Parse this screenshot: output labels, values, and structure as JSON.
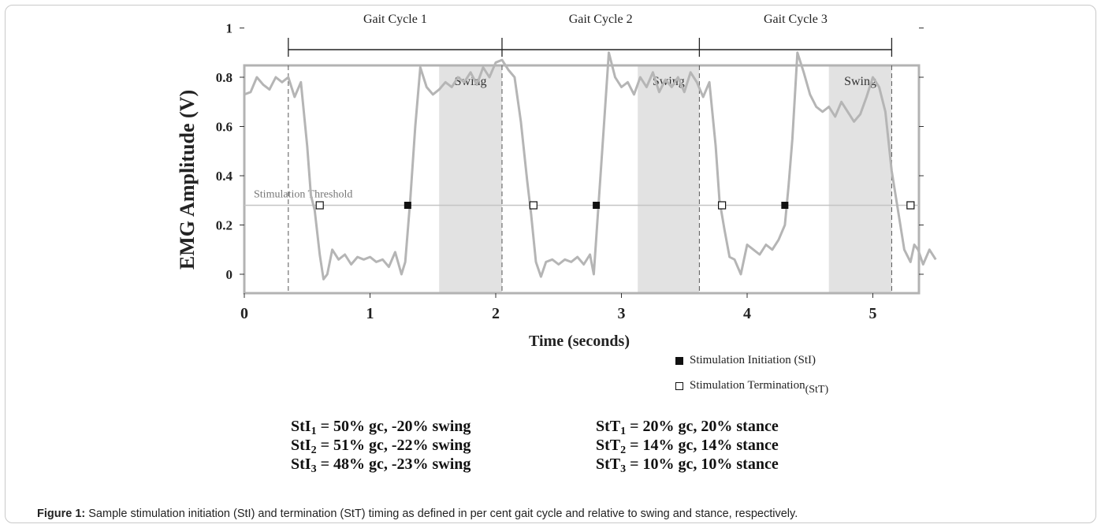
{
  "chart_data": {
    "type": "line",
    "title": "",
    "xlabel": "Time (seconds)",
    "ylabel": "EMG Amplitude (V)",
    "xlim": [
      0,
      5.5
    ],
    "ylim": [
      -0.12,
      1.0
    ],
    "x_ticks": [
      "0",
      "1",
      "2",
      "3",
      "4",
      "5"
    ],
    "y_ticks": [
      "0",
      "0.2",
      "0.4",
      "0.6",
      "0.8",
      "1"
    ],
    "gait_cycles": [
      {
        "label": "Gait Cycle 1",
        "start": 0.35,
        "end": 2.05
      },
      {
        "label": "Gait Cycle 2",
        "start": 2.05,
        "end": 3.62
      },
      {
        "label": "Gait Cycle 3",
        "start": 3.62,
        "end": 5.15
      }
    ],
    "swing_regions": [
      {
        "label": "Swing",
        "start": 1.55,
        "end": 2.05
      },
      {
        "label": "Swing",
        "start": 3.13,
        "end": 3.62
      },
      {
        "label": "Swing",
        "start": 4.65,
        "end": 5.15
      }
    ],
    "threshold": {
      "label": "Stimulation Threshold",
      "value": 0.28
    },
    "series": [
      {
        "x": [
          0.0,
          0.05,
          0.1,
          0.15,
          0.2,
          0.25,
          0.3,
          0.35,
          0.4,
          0.45,
          0.5,
          0.53,
          0.56,
          0.6,
          0.63,
          0.66,
          0.7,
          0.75,
          0.8,
          0.85,
          0.9,
          0.95,
          1.0,
          1.05,
          1.1,
          1.15,
          1.2,
          1.25,
          1.28,
          1.32,
          1.36,
          1.4,
          1.45,
          1.5,
          1.55,
          1.6,
          1.65,
          1.7,
          1.75,
          1.8,
          1.85,
          1.9,
          1.95,
          2.0,
          2.05,
          2.1,
          2.15,
          2.2,
          2.25,
          2.28,
          2.32,
          2.36,
          2.4,
          2.45,
          2.5,
          2.55,
          2.6,
          2.65,
          2.7,
          2.75,
          2.78,
          2.82,
          2.86,
          2.9,
          2.95,
          3.0,
          3.05,
          3.1,
          3.15,
          3.2,
          3.25,
          3.3,
          3.35,
          3.4,
          3.45,
          3.5,
          3.55,
          3.6,
          3.65,
          3.7,
          3.75,
          3.78,
          3.82,
          3.86,
          3.9,
          3.95,
          4.0,
          4.05,
          4.1,
          4.15,
          4.2,
          4.25,
          4.3,
          4.33,
          4.36,
          4.4,
          4.45,
          4.5,
          4.55,
          4.6,
          4.65,
          4.7,
          4.75,
          4.8,
          4.85,
          4.9,
          4.95,
          5.0,
          5.05,
          5.1,
          5.15,
          5.2,
          5.25,
          5.3,
          5.33,
          5.36,
          5.4,
          5.45,
          5.5
        ],
        "y": [
          0.73,
          0.74,
          0.8,
          0.77,
          0.75,
          0.8,
          0.78,
          0.8,
          0.72,
          0.78,
          0.52,
          0.32,
          0.26,
          0.08,
          -0.02,
          0.0,
          0.1,
          0.06,
          0.08,
          0.04,
          0.07,
          0.06,
          0.07,
          0.05,
          0.06,
          0.03,
          0.09,
          0.0,
          0.05,
          0.3,
          0.6,
          0.84,
          0.76,
          0.73,
          0.75,
          0.78,
          0.76,
          0.8,
          0.78,
          0.82,
          0.77,
          0.84,
          0.8,
          0.86,
          0.87,
          0.83,
          0.8,
          0.62,
          0.38,
          0.25,
          0.05,
          -0.01,
          0.05,
          0.06,
          0.04,
          0.06,
          0.05,
          0.07,
          0.04,
          0.08,
          0.0,
          0.3,
          0.6,
          0.9,
          0.8,
          0.76,
          0.78,
          0.73,
          0.8,
          0.76,
          0.82,
          0.74,
          0.79,
          0.76,
          0.8,
          0.74,
          0.82,
          0.78,
          0.72,
          0.78,
          0.52,
          0.3,
          0.18,
          0.07,
          0.06,
          0.0,
          0.12,
          0.1,
          0.08,
          0.12,
          0.1,
          0.14,
          0.2,
          0.36,
          0.55,
          0.9,
          0.82,
          0.73,
          0.68,
          0.66,
          0.68,
          0.64,
          0.7,
          0.66,
          0.62,
          0.65,
          0.72,
          0.8,
          0.76,
          0.66,
          0.42,
          0.26,
          0.1,
          0.05,
          0.12,
          0.1,
          0.04,
          0.1,
          0.06
        ]
      }
    ],
    "stim_initiation": [
      1.3,
      2.8,
      4.3
    ],
    "stim_termination": [
      0.6,
      2.3,
      3.8,
      5.3
    ]
  },
  "legend": {
    "initiation": "Stimulation Initiation (StI)",
    "termination_main": "Stimulation Termination",
    "termination_sub": "(StT)"
  },
  "equations": {
    "sti": [
      {
        "base": "StI",
        "sub": "1",
        "rest": " = 50% gc, -20% swing"
      },
      {
        "base": "StI",
        "sub": "2",
        "rest": " = 51% gc,  -22% swing"
      },
      {
        "base": "StI",
        "sub": "3",
        "rest": " = 48% gc,  -23% swing"
      }
    ],
    "stt": [
      {
        "base": "StT",
        "sub": "1",
        "rest": " = 20% gc, 20% stance"
      },
      {
        "base": "StT",
        "sub": "2",
        "rest": " = 14% gc, 14% stance"
      },
      {
        "base": "StT",
        "sub": "3",
        "rest": " = 10% gc, 10% stance"
      }
    ]
  },
  "caption": {
    "label": "Figure 1:",
    "text": " Sample stimulation initiation (StI) and termination (StT) timing as defined in per cent gait cycle and relative to swing and stance, respectively."
  }
}
